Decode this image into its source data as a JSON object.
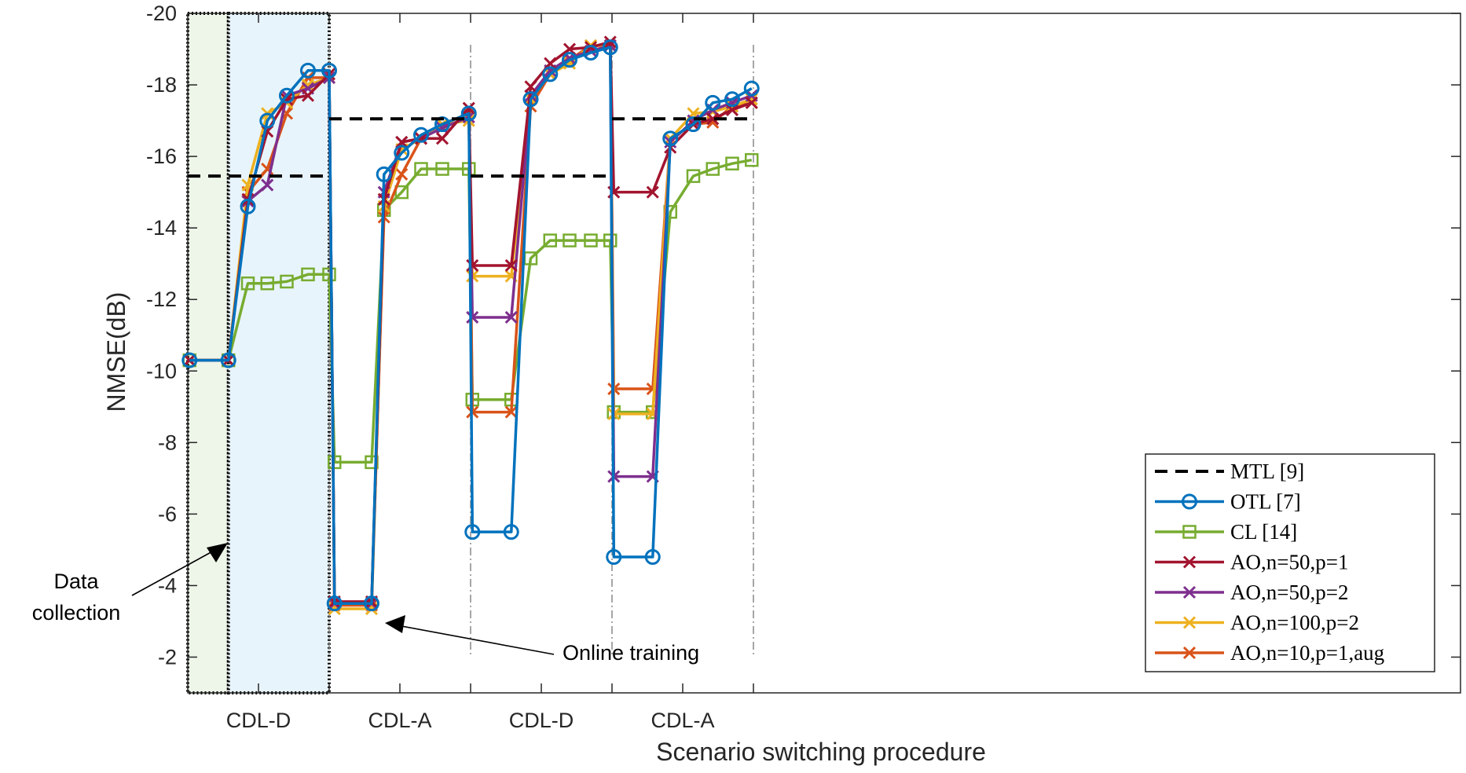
{
  "chart_data": {
    "type": "line",
    "xlabel": "Scenario switching procedure",
    "ylabel": "NMSE(dB)",
    "ylim": [
      -1,
      -20
    ],
    "y_ticks": [
      "-20",
      "-18",
      "-16",
      "-14",
      "-12",
      "-10",
      "-8",
      "-6",
      "-4",
      "-2"
    ],
    "y_tick_values": [
      -20,
      -18,
      -16,
      -14,
      -12,
      -10,
      -8,
      -6,
      -4,
      -2
    ],
    "x_range": [
      0,
      36
    ],
    "x_ticks": [
      2,
      4,
      6,
      8,
      10,
      12,
      14,
      16
    ],
    "categories": [
      "CDL-D",
      "CDL-A",
      "CDL-D",
      "CDL-A"
    ],
    "category_centers": [
      2,
      6,
      10,
      14
    ],
    "boundaries": [
      4,
      8,
      12,
      16
    ],
    "grid": false,
    "legend_position": "bottom-right",
    "annotations": {
      "data_collection": [
        "Data",
        "collection"
      ],
      "online_training": "Online training"
    },
    "colors": {
      "mtl": "#000000",
      "otl": "#0072BD",
      "cl": "#77AC30",
      "ao1": "#A2142F",
      "ao2": "#7E2F8E",
      "ao3": "#EDB120",
      "ao4": "#D95319",
      "shade_collection": "#EEF5E9",
      "shade_training": "#E8F4FB"
    },
    "series": [
      {
        "name": "MTL [9]",
        "key": "mtl",
        "marker": "none",
        "dash": true,
        "segments": [
          [
            [
              0,
              -15.45
            ],
            [
              4,
              -15.45
            ]
          ],
          [
            [
              4,
              -17.05
            ],
            [
              8,
              -17.05
            ]
          ],
          [
            [
              8,
              -15.45
            ],
            [
              12,
              -15.45
            ]
          ],
          [
            [
              12,
              -17.05
            ],
            [
              16,
              -17.05
            ]
          ]
        ]
      },
      {
        "name": "OTL [7]",
        "key": "otl",
        "marker": "circle",
        "x": [
          0.05,
          1.15,
          1.7,
          2.25,
          2.8,
          3.4,
          4.0,
          4.15,
          5.2,
          5.55,
          6.05,
          6.6,
          7.2,
          7.95,
          8.05,
          9.15,
          9.7,
          10.25,
          10.8,
          11.4,
          11.95,
          12.05,
          13.15,
          13.65,
          14.3,
          14.85,
          15.4,
          15.95
        ],
        "y": [
          -10.3,
          -10.3,
          -14.6,
          -17.0,
          -17.7,
          -18.4,
          -18.4,
          -3.5,
          -3.5,
          -15.5,
          -16.1,
          -16.6,
          -16.9,
          -17.2,
          -5.5,
          -5.5,
          -17.6,
          -18.3,
          -18.7,
          -18.9,
          -19.05,
          -4.8,
          -4.8,
          -16.5,
          -16.9,
          -17.5,
          -17.6,
          -17.9
        ]
      },
      {
        "name": "CL [14]",
        "key": "cl",
        "marker": "square",
        "x": [
          0.05,
          1.15,
          1.7,
          2.25,
          2.8,
          3.4,
          4.0,
          4.15,
          5.2,
          5.55,
          6.05,
          6.6,
          7.2,
          7.95,
          8.05,
          9.15,
          9.7,
          10.25,
          10.8,
          11.4,
          11.95,
          12.05,
          13.15,
          13.65,
          14.3,
          14.85,
          15.4,
          15.95
        ],
        "y": [
          -10.3,
          -10.3,
          -12.45,
          -12.45,
          -12.5,
          -12.7,
          -12.7,
          -7.45,
          -7.45,
          -14.5,
          -15.0,
          -15.65,
          -15.65,
          -15.65,
          -9.2,
          -9.2,
          -13.15,
          -13.65,
          -13.65,
          -13.65,
          -13.65,
          -8.85,
          -8.85,
          -14.45,
          -15.45,
          -15.65,
          -15.8,
          -15.9
        ]
      },
      {
        "name": "AO,n=50,p=1",
        "key": "ao1",
        "marker": "x",
        "x": [
          0.05,
          1.15,
          1.7,
          2.25,
          2.8,
          3.4,
          4.0,
          4.15,
          5.2,
          5.55,
          6.05,
          6.6,
          7.2,
          7.95,
          8.05,
          9.15,
          9.7,
          10.25,
          10.8,
          11.4,
          11.95,
          12.05,
          13.15,
          13.65,
          14.3,
          14.85,
          15.4,
          15.95
        ],
        "y": [
          -10.3,
          -10.3,
          -14.8,
          -16.7,
          -17.6,
          -17.7,
          -18.3,
          -3.55,
          -3.55,
          -14.8,
          -16.4,
          -16.5,
          -16.5,
          -17.35,
          -12.95,
          -12.95,
          -17.95,
          -18.6,
          -19.0,
          -19.05,
          -19.2,
          -15.0,
          -15.0,
          -16.25,
          -16.9,
          -17.05,
          -17.3,
          -17.5
        ]
      },
      {
        "name": "AO,n=50,p=2",
        "key": "ao2",
        "marker": "x",
        "x": [
          0.05,
          1.15,
          1.7,
          2.25,
          2.8,
          3.4,
          4.0,
          4.15,
          5.2,
          5.55,
          6.05,
          6.6,
          7.2,
          7.95,
          8.05,
          9.15,
          9.7,
          10.25,
          10.8,
          11.4,
          11.95,
          12.05,
          13.15,
          13.65,
          14.3,
          14.85,
          15.4,
          15.95
        ],
        "y": [
          -10.3,
          -10.3,
          -14.75,
          -15.2,
          -17.7,
          -17.9,
          -18.2,
          -3.5,
          -3.5,
          -15.0,
          -16.4,
          -16.5,
          -16.8,
          -17.1,
          -11.5,
          -11.5,
          -17.7,
          -18.4,
          -18.75,
          -18.95,
          -19.1,
          -7.05,
          -7.05,
          -16.4,
          -17.0,
          -17.3,
          -17.5,
          -17.7
        ]
      },
      {
        "name": "AO,n=100,p=2",
        "key": "ao3",
        "marker": "x",
        "x": [
          0.05,
          1.15,
          1.7,
          2.25,
          2.8,
          3.4,
          4.0,
          4.15,
          5.2,
          5.55,
          6.05,
          6.6,
          7.2,
          7.95,
          8.05,
          9.15,
          9.7,
          10.25,
          10.8,
          11.4,
          11.95,
          12.05,
          13.15,
          13.65,
          14.3,
          14.85,
          15.4,
          15.95
        ],
        "y": [
          -10.3,
          -10.3,
          -15.2,
          -17.2,
          -17.5,
          -18.0,
          -18.2,
          -3.35,
          -3.35,
          -14.6,
          -16.2,
          -16.5,
          -16.9,
          -17.0,
          -12.65,
          -12.65,
          -17.6,
          -18.3,
          -18.6,
          -19.1,
          -19.1,
          -8.8,
          -8.8,
          -16.5,
          -17.2,
          -17.25,
          -17.4,
          -17.6
        ]
      },
      {
        "name": "AO,n=10,p=1,aug",
        "key": "ao4",
        "marker": "x",
        "x": [
          0.05,
          1.15,
          1.7,
          2.25,
          2.8,
          3.4,
          4.0,
          4.15,
          5.2,
          5.55,
          6.05,
          6.6,
          7.2,
          7.95,
          8.05,
          9.15,
          9.7,
          10.25,
          10.8,
          11.4,
          11.95,
          12.05,
          13.15,
          13.65,
          14.3,
          14.85,
          15.4,
          15.95
        ],
        "y": [
          -10.3,
          -10.3,
          -15.0,
          -15.65,
          -17.2,
          -18.2,
          -18.2,
          -3.45,
          -3.45,
          -14.3,
          -15.5,
          -16.5,
          -16.9,
          -17.2,
          -8.85,
          -8.85,
          -17.4,
          -18.3,
          -18.7,
          -19.1,
          -19.1,
          -9.5,
          -9.5,
          -16.5,
          -16.9,
          -16.95,
          -17.4,
          -17.5
        ]
      }
    ]
  }
}
